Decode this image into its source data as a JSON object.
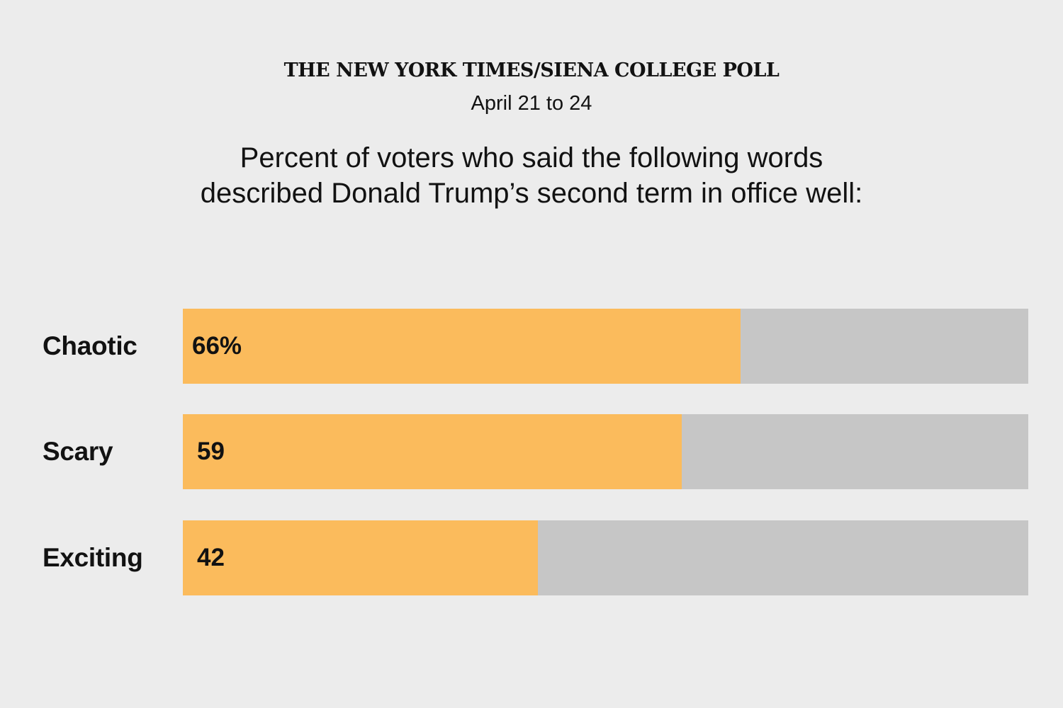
{
  "header": {
    "source": "THE NEW YORK TIMES/SIENA COLLEGE POLL",
    "dates": "April 21 to 24",
    "question_line1": "Percent of voters who said the following words",
    "question_line2": "described Donald Trump’s second term in office well:"
  },
  "colors": {
    "background": "#ececec",
    "bar_fill": "#fbbb5c",
    "bar_track": "#c6c6c6",
    "text": "#121212"
  },
  "chart_data": {
    "type": "bar",
    "orientation": "horizontal",
    "categories": [
      "Chaotic",
      "Scary",
      "Exciting"
    ],
    "values": [
      66,
      59,
      42
    ],
    "value_labels": [
      "66%",
      "59",
      "42"
    ],
    "xlim": [
      0,
      100
    ],
    "grid": false
  }
}
